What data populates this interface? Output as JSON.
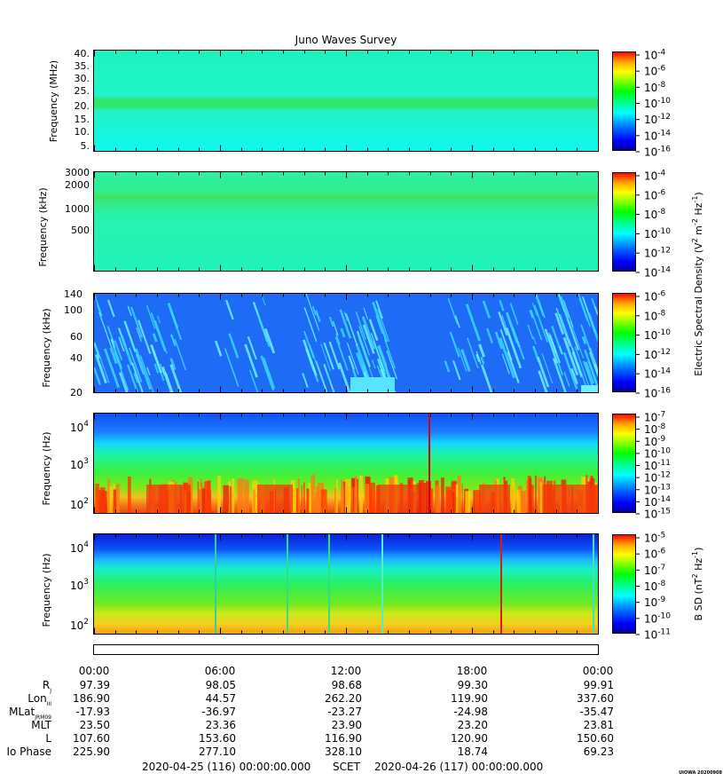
{
  "title": "Juno Waves Survey",
  "panels": [
    {
      "ylabel": "Frequency (MHz)",
      "y_ticks": [
        "40.",
        "35.",
        "30.",
        "25.",
        "20.",
        "15.",
        "10.",
        "5."
      ],
      "colorbar": {
        "exponents": [
          "-4",
          "-6",
          "-8",
          "-10",
          "-12",
          "-14",
          "-16"
        ]
      }
    },
    {
      "ylabel": "Frequency (kHz)",
      "y_ticks": [
        "3000",
        "2000",
        "1000",
        "500"
      ],
      "colorbar": {
        "exponents": [
          "-4",
          "-6",
          "-8",
          "-10",
          "-12",
          "-14"
        ]
      }
    },
    {
      "ylabel": "Frequency (kHz)",
      "y_ticks": [
        "140",
        "100",
        "60",
        "40",
        "20"
      ],
      "colorbar": {
        "exponents": [
          "-6",
          "-8",
          "-10",
          "-12",
          "-14",
          "-16"
        ]
      }
    },
    {
      "ylabel": "Frequency (Hz)",
      "y_ticks": [
        {
          "base": "10",
          "exp": "4"
        },
        {
          "base": "10",
          "exp": "3"
        },
        {
          "base": "10",
          "exp": "2"
        }
      ],
      "colorbar": {
        "exponents": [
          "-7",
          "-8",
          "-9",
          "-10",
          "-11",
          "-12",
          "-13",
          "-14",
          "-15"
        ]
      }
    },
    {
      "ylabel": "Frequency (Hz)",
      "y_ticks": [
        {
          "base": "10",
          "exp": "4"
        },
        {
          "base": "10",
          "exp": "3"
        },
        {
          "base": "10",
          "exp": "2"
        }
      ],
      "colorbar": {
        "exponents": [
          "-5",
          "-6",
          "-7",
          "-8",
          "-9",
          "-10",
          "-11"
        ]
      }
    }
  ],
  "colorbar_label_e": {
    "main": "Electric Spectral Density (V",
    "sup1": "2",
    "mid1": " m",
    "sup2": "-2",
    "mid2": " Hz",
    "sup3": "-1",
    "end": ")"
  },
  "colorbar_label_b": {
    "main": "B SD (nT",
    "sup1": "2",
    "mid1": " Hz",
    "sup2": "-1",
    "end": ")"
  },
  "colorbar_base": "10",
  "ephemeris": {
    "times": [
      "00:00",
      "06:00",
      "12:00",
      "18:00",
      "00:00"
    ],
    "rows": [
      {
        "label": "R",
        "sub": "J",
        "values": [
          "97.39",
          "98.05",
          "98.68",
          "99.30",
          "99.91"
        ]
      },
      {
        "label": "Lon",
        "sub": "III",
        "values": [
          "186.90",
          "44.57",
          "262.20",
          "119.90",
          "337.60"
        ]
      },
      {
        "label": "MLat",
        "sub": "JRM09",
        "values": [
          "-17.93",
          "-36.97",
          "-23.27",
          "-24.98",
          "-35.47"
        ]
      },
      {
        "label": "MLT",
        "sub": "",
        "values": [
          "23.50",
          "23.36",
          "23.90",
          "23.20",
          "23.81"
        ]
      },
      {
        "label": "L",
        "sub": "",
        "values": [
          "107.60",
          "153.60",
          "116.90",
          "120.90",
          "150.60"
        ]
      },
      {
        "label": "Io Phase",
        "sub": "",
        "values": [
          "225.90",
          "277.10",
          "328.10",
          "18.74",
          "69.23"
        ]
      }
    ]
  },
  "footer": {
    "start": "2020-04-25 (116) 00:00:00.000",
    "scet": "SCET",
    "end": "2020-04-26 (117) 00:00:00.000"
  },
  "credit": "UIOWA 20200908",
  "colors": {
    "spectral_scale": [
      "#0000a0",
      "#0000ff",
      "#0080ff",
      "#00ffff",
      "#00ff80",
      "#00ff00",
      "#80ff00",
      "#ffff00",
      "#ffa000",
      "#ff0000"
    ],
    "panel1_background": "#19f5d0",
    "panel2_background": "#2bf0a8",
    "panel3_background": "#1e6cf5"
  }
}
